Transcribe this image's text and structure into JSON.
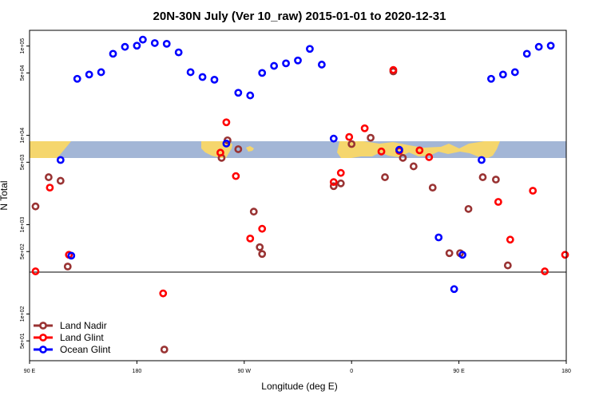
{
  "chart_data": {
    "type": "scatter",
    "title": "20N-30N July (Ver 10_raw)   2015-01-01 to 2020-12-31",
    "xlabel": "Longitude (deg E)",
    "ylabel": "N Total",
    "xlim": [
      90,
      540
    ],
    "y_scale": "log",
    "ylim": [
      30,
      150000
    ],
    "grid": false,
    "legend_position": "bottom-left",
    "x_ticks": [
      {
        "value": 90,
        "label": "90 E"
      },
      {
        "value": 180,
        "label": "180"
      },
      {
        "value": 270,
        "label": "90 W"
      },
      {
        "value": 360,
        "label": "0"
      },
      {
        "value": 450,
        "label": "90 E"
      },
      {
        "value": 540,
        "label": "180"
      }
    ],
    "y_ticks": [
      {
        "value": 50,
        "label": "5e+01"
      },
      {
        "value": 100,
        "label": "1e+02"
      },
      {
        "value": 500,
        "label": "5e+02"
      },
      {
        "value": 1000,
        "label": "1e+03"
      },
      {
        "value": 5000,
        "label": "5e+03"
      },
      {
        "value": 10000,
        "label": "1e+04"
      },
      {
        "value": 50000,
        "label": "5e+04"
      },
      {
        "value": 100000,
        "label": "1e+05"
      }
    ],
    "series": [
      {
        "name": "Land Nadir",
        "color": "#993333",
        "points": [
          [
            95,
            1600
          ],
          [
            106,
            3400
          ],
          [
            116,
            3100
          ],
          [
            122,
            340
          ],
          [
            203,
            40
          ],
          [
            251,
            5600
          ],
          [
            256,
            8800
          ],
          [
            265,
            7000
          ],
          [
            278,
            1400
          ],
          [
            283,
            560
          ],
          [
            285,
            470
          ],
          [
            345,
            2700
          ],
          [
            351,
            2900
          ],
          [
            360,
            8000
          ],
          [
            376,
            9400
          ],
          [
            388,
            3400
          ],
          [
            395,
            52000
          ],
          [
            403,
            5600
          ],
          [
            412,
            4500
          ],
          [
            428,
            2600
          ],
          [
            442,
            480
          ],
          [
            451,
            480
          ],
          [
            458,
            1500
          ],
          [
            470,
            3400
          ],
          [
            481,
            3200
          ],
          [
            491,
            350
          ]
        ]
      },
      {
        "name": "Land Glint",
        "color": "#ff0000",
        "points": [
          [
            95,
            300
          ],
          [
            107,
            2600
          ],
          [
            123,
            460
          ],
          [
            202,
            170
          ],
          [
            250,
            6400
          ],
          [
            255,
            14000
          ],
          [
            263,
            3500
          ],
          [
            275,
            700
          ],
          [
            285,
            900
          ],
          [
            345,
            3000
          ],
          [
            351,
            3800
          ],
          [
            358,
            9600
          ],
          [
            371,
            12000
          ],
          [
            385,
            6600
          ],
          [
            395,
            54000
          ],
          [
            400,
            6700
          ],
          [
            417,
            6800
          ],
          [
            425,
            5700
          ],
          [
            483,
            1800
          ],
          [
            493,
            680
          ],
          [
            512,
            2400
          ],
          [
            522,
            300
          ],
          [
            539,
            460
          ]
        ]
      },
      {
        "name": "Ocean Glint",
        "color": "#0000ff",
        "points": [
          [
            116,
            5300
          ],
          [
            125,
            450
          ],
          [
            130,
            43000
          ],
          [
            140,
            48000
          ],
          [
            150,
            51000
          ],
          [
            160,
            82000
          ],
          [
            170,
            98000
          ],
          [
            180,
            101000
          ],
          [
            185,
            118000
          ],
          [
            195,
            108000
          ],
          [
            205,
            106000
          ],
          [
            215,
            85000
          ],
          [
            225,
            51000
          ],
          [
            235,
            45000
          ],
          [
            245,
            42000
          ],
          [
            255,
            8100
          ],
          [
            265,
            30000
          ],
          [
            275,
            28000
          ],
          [
            285,
            50000
          ],
          [
            295,
            60000
          ],
          [
            305,
            64000
          ],
          [
            315,
            69000
          ],
          [
            325,
            93000
          ],
          [
            335,
            62000
          ],
          [
            345,
            9200
          ],
          [
            400,
            6900
          ],
          [
            433,
            720
          ],
          [
            446,
            190
          ],
          [
            453,
            460
          ],
          [
            469,
            5300
          ],
          [
            477,
            43000
          ],
          [
            487,
            48000
          ],
          [
            497,
            51000
          ],
          [
            507,
            82000
          ],
          [
            517,
            98000
          ],
          [
            527,
            101000
          ]
        ]
      }
    ]
  }
}
